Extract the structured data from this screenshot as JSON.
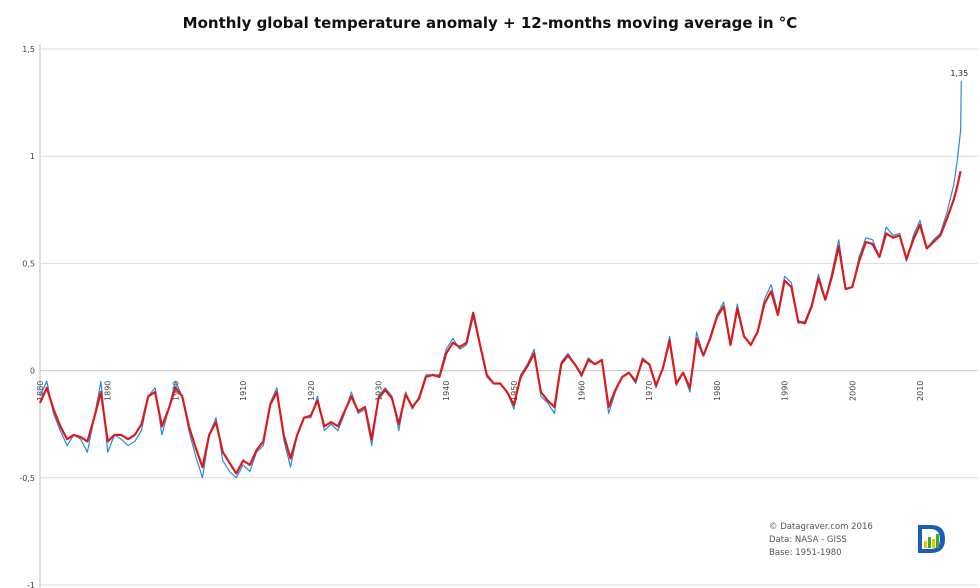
{
  "chart_data": {
    "type": "line",
    "title": "Monthly global temperature anomaly + 12-months moving average in °C",
    "ylim": [
      -1,
      1.5
    ],
    "xlim": [
      1880,
      2016.2
    ],
    "yticks": [
      {
        "value": 1.5,
        "label": "1,5"
      },
      {
        "value": 1,
        "label": "1"
      },
      {
        "value": 0.5,
        "label": "0,5"
      },
      {
        "value": 0,
        "label": "0"
      },
      {
        "value": -0.5,
        "label": "-0,5"
      },
      {
        "value": -1,
        "label": "-1"
      }
    ],
    "xticks": [
      {
        "value": 1880,
        "label": "1880"
      },
      {
        "value": 1890,
        "label": "1890"
      },
      {
        "value": 1900,
        "label": "1900"
      },
      {
        "value": 1910,
        "label": "1910"
      },
      {
        "value": 1920,
        "label": "1920"
      },
      {
        "value": 1930,
        "label": "1930"
      },
      {
        "value": 1940,
        "label": "1940"
      },
      {
        "value": 1950,
        "label": "1950"
      },
      {
        "value": 1960,
        "label": "1960"
      },
      {
        "value": 1970,
        "label": "1970"
      },
      {
        "value": 1980,
        "label": "1980"
      },
      {
        "value": 1990,
        "label": "1990"
      },
      {
        "value": 2000,
        "label": "2000"
      },
      {
        "value": 2010,
        "label": "2010"
      }
    ],
    "annotation": {
      "x": 2016.1,
      "y": 1.35,
      "label": "1,35"
    },
    "series": [
      {
        "name": "Monthly anomaly",
        "color": "#2b8ad6",
        "x": [
          1880,
          1881,
          1882,
          1883,
          1884,
          1885,
          1886,
          1887,
          1888,
          1889,
          1890,
          1891,
          1892,
          1893,
          1894,
          1895,
          1896,
          1897,
          1898,
          1899,
          1900,
          1901,
          1902,
          1903,
          1904,
          1905,
          1906,
          1907,
          1908,
          1909,
          1910,
          1911,
          1912,
          1913,
          1914,
          1915,
          1916,
          1917,
          1918,
          1919,
          1920,
          1921,
          1922,
          1923,
          1924,
          1925,
          1926,
          1927,
          1928,
          1929,
          1930,
          1931,
          1932,
          1933,
          1934,
          1935,
          1936,
          1937,
          1938,
          1939,
          1940,
          1941,
          1942,
          1943,
          1944,
          1945,
          1946,
          1947,
          1948,
          1949,
          1950,
          1951,
          1952,
          1953,
          1954,
          1955,
          1956,
          1957,
          1958,
          1959,
          1960,
          1961,
          1962,
          1963,
          1964,
          1965,
          1966,
          1967,
          1968,
          1969,
          1970,
          1971,
          1972,
          1973,
          1974,
          1975,
          1976,
          1977,
          1978,
          1979,
          1980,
          1981,
          1982,
          1983,
          1984,
          1985,
          1986,
          1987,
          1988,
          1989,
          1990,
          1991,
          1992,
          1993,
          1994,
          1995,
          1996,
          1997,
          1998,
          1999,
          2000,
          2001,
          2002,
          2003,
          2004,
          2005,
          2006,
          2007,
          2008,
          2009,
          2010,
          2011,
          2012,
          2013,
          2014,
          2015,
          2015.5,
          2016,
          2016.1
        ],
        "values": [
          -0.12,
          -0.05,
          -0.2,
          -0.28,
          -0.35,
          -0.3,
          -0.32,
          -0.38,
          -0.22,
          -0.05,
          -0.38,
          -0.3,
          -0.32,
          -0.35,
          -0.33,
          -0.28,
          -0.12,
          -0.08,
          -0.3,
          -0.18,
          -0.05,
          -0.12,
          -0.28,
          -0.4,
          -0.5,
          -0.3,
          -0.22,
          -0.42,
          -0.47,
          -0.5,
          -0.44,
          -0.47,
          -0.38,
          -0.35,
          -0.15,
          -0.08,
          -0.32,
          -0.45,
          -0.3,
          -0.22,
          -0.22,
          -0.12,
          -0.28,
          -0.25,
          -0.28,
          -0.2,
          -0.1,
          -0.2,
          -0.18,
          -0.35,
          -0.12,
          -0.08,
          -0.12,
          -0.28,
          -0.1,
          -0.18,
          -0.12,
          -0.02,
          -0.02,
          -0.02,
          0.1,
          0.15,
          0.1,
          0.12,
          0.25,
          0.12,
          -0.03,
          -0.06,
          -0.06,
          -0.1,
          -0.18,
          -0.02,
          0.03,
          0.1,
          -0.12,
          -0.15,
          -0.2,
          0.04,
          0.08,
          0.03,
          -0.03,
          0.06,
          0.03,
          0.05,
          -0.2,
          -0.1,
          -0.03,
          -0.01,
          -0.06,
          0.06,
          0.03,
          -0.08,
          0.01,
          0.16,
          -0.07,
          -0.01,
          -0.1,
          0.18,
          0.07,
          0.16,
          0.26,
          0.32,
          0.12,
          0.31,
          0.16,
          0.12,
          0.18,
          0.33,
          0.4,
          0.27,
          0.44,
          0.41,
          0.22,
          0.23,
          0.31,
          0.45,
          0.33,
          0.46,
          0.61,
          0.38,
          0.39,
          0.53,
          0.62,
          0.61,
          0.53,
          0.67,
          0.63,
          0.64,
          0.51,
          0.63,
          0.7,
          0.57,
          0.61,
          0.64,
          0.74,
          0.87,
          0.98,
          1.12,
          1.35
        ]
      },
      {
        "name": "12-months moving average",
        "color": "#dd1a1a",
        "x": [
          1880,
          1881,
          1882,
          1883,
          1884,
          1885,
          1886,
          1887,
          1888,
          1889,
          1890,
          1891,
          1892,
          1893,
          1894,
          1895,
          1896,
          1897,
          1898,
          1899,
          1900,
          1901,
          1902,
          1903,
          1904,
          1905,
          1906,
          1907,
          1908,
          1909,
          1910,
          1911,
          1912,
          1913,
          1914,
          1915,
          1916,
          1917,
          1918,
          1919,
          1920,
          1921,
          1922,
          1923,
          1924,
          1925,
          1926,
          1927,
          1928,
          1929,
          1930,
          1931,
          1932,
          1933,
          1934,
          1935,
          1936,
          1937,
          1938,
          1939,
          1940,
          1941,
          1942,
          1943,
          1944,
          1945,
          1946,
          1947,
          1948,
          1949,
          1950,
          1951,
          1952,
          1953,
          1954,
          1955,
          1956,
          1957,
          1958,
          1959,
          1960,
          1961,
          1962,
          1963,
          1964,
          1965,
          1966,
          1967,
          1968,
          1969,
          1970,
          1971,
          1972,
          1973,
          1974,
          1975,
          1976,
          1977,
          1978,
          1979,
          1980,
          1981,
          1982,
          1983,
          1984,
          1985,
          1986,
          1987,
          1988,
          1989,
          1990,
          1991,
          1992,
          1993,
          1994,
          1995,
          1996,
          1997,
          1998,
          1999,
          2000,
          2001,
          2002,
          2003,
          2004,
          2005,
          2006,
          2007,
          2008,
          2009,
          2010,
          2011,
          2012,
          2013,
          2014,
          2015,
          2015.5,
          2016
        ],
        "values": [
          -0.15,
          -0.08,
          -0.18,
          -0.26,
          -0.32,
          -0.3,
          -0.31,
          -0.33,
          -0.22,
          -0.1,
          -0.33,
          -0.3,
          -0.3,
          -0.32,
          -0.3,
          -0.25,
          -0.12,
          -0.1,
          -0.26,
          -0.18,
          -0.08,
          -0.12,
          -0.26,
          -0.36,
          -0.45,
          -0.3,
          -0.24,
          -0.38,
          -0.43,
          -0.48,
          -0.42,
          -0.44,
          -0.37,
          -0.33,
          -0.16,
          -0.1,
          -0.3,
          -0.41,
          -0.3,
          -0.22,
          -0.21,
          -0.14,
          -0.26,
          -0.24,
          -0.26,
          -0.19,
          -0.12,
          -0.19,
          -0.17,
          -0.32,
          -0.13,
          -0.09,
          -0.13,
          -0.25,
          -0.11,
          -0.17,
          -0.13,
          -0.03,
          -0.02,
          -0.03,
          0.08,
          0.13,
          0.11,
          0.13,
          0.27,
          0.12,
          -0.02,
          -0.06,
          -0.06,
          -0.1,
          -0.16,
          -0.03,
          0.02,
          0.08,
          -0.1,
          -0.14,
          -0.17,
          0.03,
          0.07,
          0.03,
          -0.02,
          0.05,
          0.03,
          0.05,
          -0.17,
          -0.09,
          -0.03,
          -0.01,
          -0.05,
          0.05,
          0.03,
          -0.07,
          0.01,
          0.14,
          -0.06,
          -0.01,
          -0.08,
          0.15,
          0.07,
          0.15,
          0.25,
          0.3,
          0.12,
          0.29,
          0.16,
          0.12,
          0.18,
          0.31,
          0.37,
          0.26,
          0.42,
          0.39,
          0.23,
          0.22,
          0.3,
          0.43,
          0.33,
          0.44,
          0.58,
          0.38,
          0.39,
          0.51,
          0.6,
          0.59,
          0.53,
          0.64,
          0.62,
          0.63,
          0.52,
          0.61,
          0.68,
          0.57,
          0.6,
          0.63,
          0.71,
          0.8,
          0.86,
          0.93
        ]
      }
    ]
  },
  "credits": {
    "line1": "© Datagraver.com  2016",
    "line2": "Data: NASA - GISS",
    "line3": "Base: 1951-1980"
  },
  "logo": {
    "icon": "datagraver-logo-icon",
    "colors": [
      "#1a5fb4",
      "#f2c500",
      "#3aaa35"
    ]
  }
}
